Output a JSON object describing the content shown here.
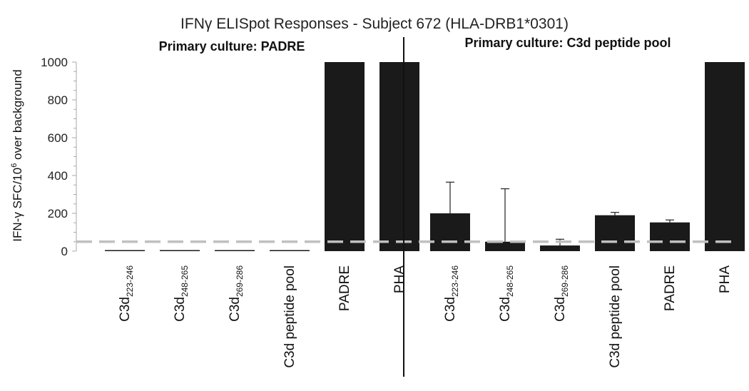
{
  "chart_data": {
    "type": "bar",
    "title": "IFNγ ELISpot Responses - Subject 672 (HLA-DRB1*0301)",
    "ylabel": {
      "prefix": "IFN-γ SFC/10",
      "sup": "6",
      "suffix": " over background"
    },
    "ylim": [
      0,
      1000
    ],
    "yticks": [
      "0",
      "200",
      "400",
      "600",
      "800",
      "1000"
    ],
    "threshold": 50,
    "colors": {
      "bar": "#1a1a1a",
      "threshold": "#c0c0c0",
      "divider": "#111111",
      "axis": "#aaaaaa"
    },
    "panels": [
      {
        "title": "Primary culture: PADRE",
        "bars": [
          {
            "base": "C3d",
            "sub": "223-246",
            "value": 0,
            "err": 0
          },
          {
            "base": "C3d",
            "sub": "248-265",
            "value": 0,
            "err": 0
          },
          {
            "base": "C3d",
            "sub": "269-286",
            "value": 0,
            "err": 0
          },
          {
            "base": "C3d peptide pool",
            "sub": "",
            "value": 0,
            "err": 0
          },
          {
            "base": "PADRE",
            "sub": "",
            "value": 1000,
            "err": 0
          },
          {
            "base": "PHA",
            "sub": "",
            "value": 1000,
            "err": 0
          }
        ]
      },
      {
        "title": "Primary culture: C3d peptide pool",
        "bars": [
          {
            "base": "C3d",
            "sub": "223-246",
            "value": 200,
            "err": 165
          },
          {
            "base": "C3d",
            "sub": "248-265",
            "value": 50,
            "err": 280
          },
          {
            "base": "C3d",
            "sub": "269-286",
            "value": 30,
            "err": 33
          },
          {
            "base": "C3d peptide pool",
            "sub": "",
            "value": 190,
            "err": 15
          },
          {
            "base": "PADRE",
            "sub": "",
            "value": 152,
            "err": 13
          },
          {
            "base": "PHA",
            "sub": "",
            "value": 1000,
            "err": 0
          }
        ]
      }
    ]
  }
}
